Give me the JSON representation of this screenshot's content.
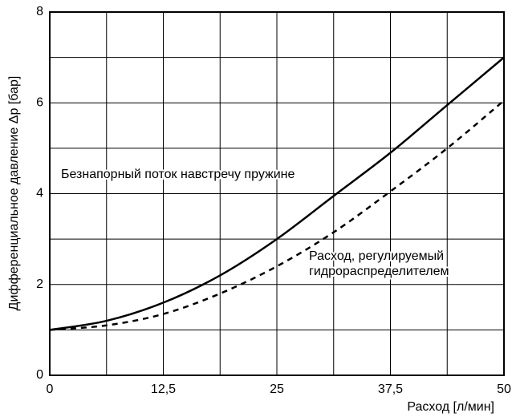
{
  "chart_data": {
    "type": "line",
    "x_label": "Расход [л/мин]",
    "y_label": "Дифференциальное давление Δp [бар]",
    "x": [
      0,
      6.25,
      12.5,
      18.75,
      25,
      31.25,
      37.5,
      43.75,
      50
    ],
    "series": [
      {
        "name": "Безнапорный поток навстречу пружине",
        "color": "#000000",
        "dash": "solid",
        "values": [
          1.0,
          1.2,
          1.6,
          2.2,
          3.0,
          3.95,
          4.9,
          5.95,
          7.0
        ]
      },
      {
        "name": "Расход, регулируемый гидрораспределителем",
        "color": "#000000",
        "dash": "dashed",
        "values": [
          1.0,
          1.1,
          1.35,
          1.8,
          2.4,
          3.15,
          4.05,
          5.0,
          6.05
        ]
      }
    ],
    "annotations": [
      {
        "lines": [
          "Безнапорный поток навстречу пружине"
        ]
      },
      {
        "lines": [
          "Расход, регулируемый",
          "гидрораспределителем"
        ]
      }
    ],
    "xlim": [
      0,
      50
    ],
    "ylim": [
      0,
      8
    ],
    "xticks": [
      0,
      {
        "value": 12.5,
        "label": "12,5"
      },
      25,
      {
        "value": 37.5,
        "label": "37,5"
      },
      50
    ],
    "yticks": [
      0,
      2,
      4,
      6,
      8
    ],
    "x_minor_ticks": [
      6.25,
      18.75,
      31.25,
      43.75
    ],
    "y_minor_ticks": [
      1,
      3,
      5,
      7
    ],
    "grid": true
  }
}
